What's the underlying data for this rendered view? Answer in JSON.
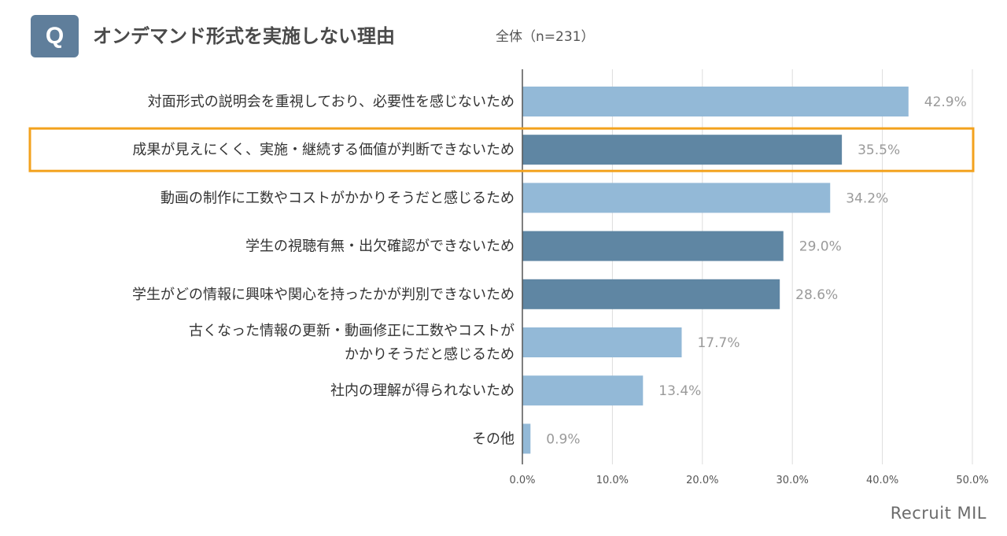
{
  "header": {
    "badge": "Q",
    "title": "オンデマンド形式を実施しない理由",
    "subtitle": "全体（n=231）"
  },
  "brand": "Recruit MIL",
  "colors": {
    "bar_light": "#93b9d7",
    "bar_dark": "#5f86a3",
    "highlight_border": "#f3a21e",
    "axis": "#555555",
    "grid": "#dddddd"
  },
  "chart_data": {
    "type": "bar",
    "orientation": "horizontal",
    "categories": [
      [
        "対面形式の説明会を重視しており、必要性を感じないため"
      ],
      [
        "成果が見えにくく、実施・継続する価値が判断できないため"
      ],
      [
        "動画の制作に工数やコストがかかりそうだと感じるため"
      ],
      [
        "学生の視聴有無・出欠確認ができないため"
      ],
      [
        "学生がどの情報に興味や関心を持ったかが判別できないため"
      ],
      [
        "古くなった情報の更新・動画修正に工数やコストが",
        "かかりそうだと感じるため"
      ],
      [
        "社内の理解が得られないため"
      ],
      [
        "その他"
      ]
    ],
    "values": [
      42.9,
      35.5,
      34.2,
      29.0,
      28.6,
      17.7,
      13.4,
      0.9
    ],
    "value_labels": [
      "42.9%",
      "35.5%",
      "34.2%",
      "29.0%",
      "28.6%",
      "17.7%",
      "13.4%",
      "0.9%"
    ],
    "bar_shade": [
      "light",
      "dark",
      "light",
      "dark",
      "dark",
      "light",
      "light",
      "light"
    ],
    "highlighted_index": 1,
    "xlim": [
      0,
      50
    ],
    "x_ticks": [
      0,
      10,
      20,
      30,
      40,
      50
    ],
    "x_tick_labels": [
      "0.0%",
      "10.0%",
      "20.0%",
      "30.0%",
      "40.0%",
      "50.0%"
    ],
    "grid": true
  }
}
